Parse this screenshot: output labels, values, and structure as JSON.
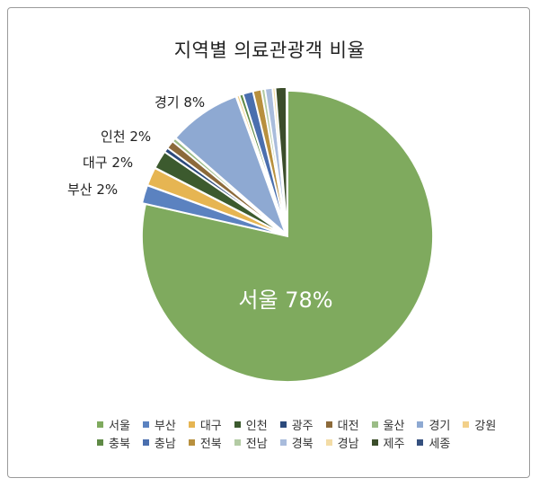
{
  "chart_data": {
    "type": "pie",
    "title": "지역별 의료관광객 비율",
    "slices": [
      {
        "name": "서울",
        "value": 78,
        "color": "#7faa5e"
      },
      {
        "name": "부산",
        "value": 2,
        "color": "#5b82c0"
      },
      {
        "name": "대구",
        "value": 2,
        "color": "#e6b552"
      },
      {
        "name": "인천",
        "value": 2,
        "color": "#3c5a2e"
      },
      {
        "name": "광주",
        "value": 0.5,
        "color": "#2c4a7c"
      },
      {
        "name": "대전",
        "value": 0.9,
        "color": "#8c6a3a"
      },
      {
        "name": "울산",
        "value": 0.4,
        "color": "#9bbc86"
      },
      {
        "name": "경기",
        "value": 8,
        "color": "#8ea9d2"
      },
      {
        "name": "강원",
        "value": 0.3,
        "color": "#f2d08a"
      },
      {
        "name": "충북",
        "value": 0.4,
        "color": "#5f8a46"
      },
      {
        "name": "충남",
        "value": 1.1,
        "color": "#4a6fae"
      },
      {
        "name": "전북",
        "value": 0.9,
        "color": "#b8903e"
      },
      {
        "name": "전남",
        "value": 0.4,
        "color": "#b3cba4"
      },
      {
        "name": "경북",
        "value": 0.8,
        "color": "#a9bcdc"
      },
      {
        "name": "경남",
        "value": 0.3,
        "color": "#f3dca6"
      },
      {
        "name": "제주",
        "value": 1.2,
        "color": "#3b4d2a"
      },
      {
        "name": "세종",
        "value": 0.1,
        "color": "#35507e"
      }
    ],
    "data_labels": [
      {
        "slice": "서울",
        "text": "서울 78%"
      },
      {
        "slice": "부산",
        "text": "부산 2%"
      },
      {
        "slice": "대구",
        "text": "대구 2%"
      },
      {
        "slice": "인천",
        "text": "인천 2%"
      },
      {
        "slice": "경기",
        "text": "경기 8%"
      }
    ],
    "legend_position": "bottom",
    "legend_rows": [
      [
        "서울",
        "부산",
        "대구",
        "인천",
        "광주",
        "대전",
        "울산",
        "경기",
        "강원"
      ],
      [
        "충북",
        "충남",
        "전북",
        "전남",
        "경북",
        "경남",
        "제주",
        "세종"
      ]
    ]
  }
}
